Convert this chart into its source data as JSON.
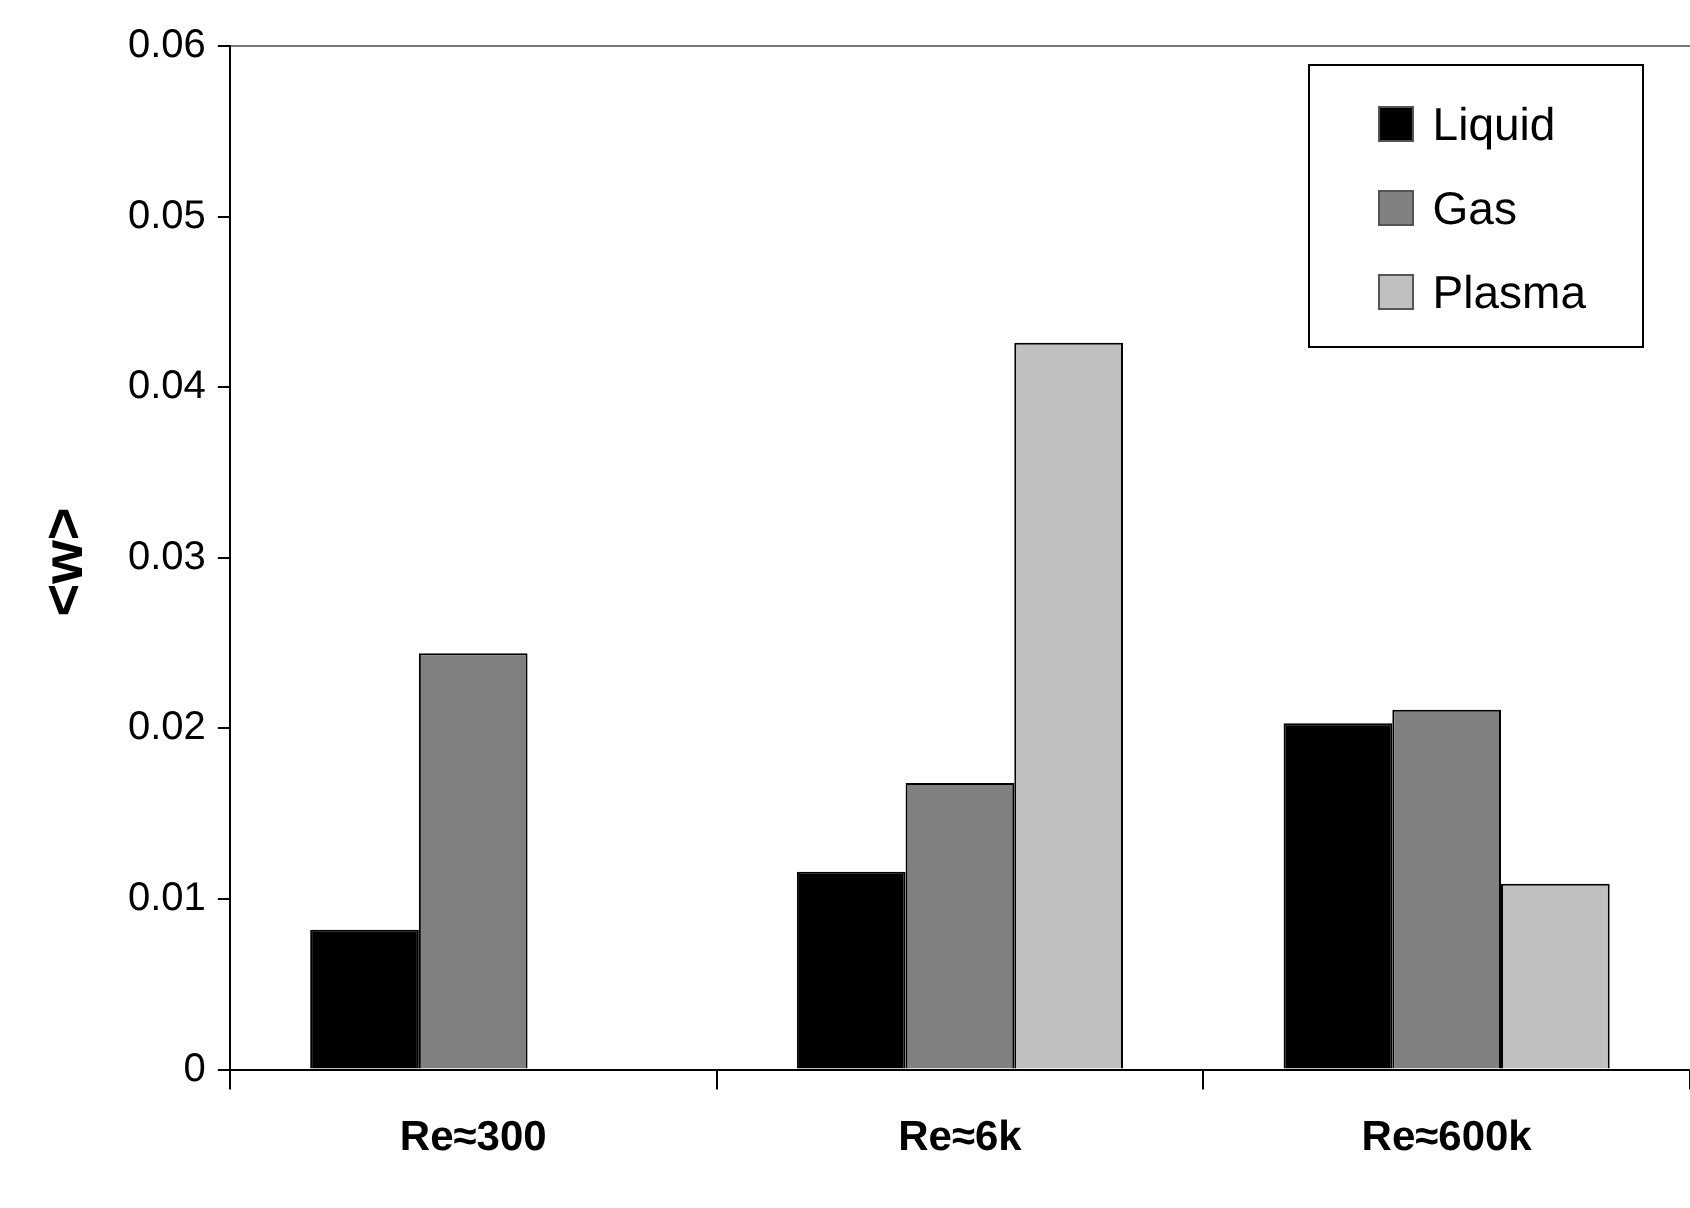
{
  "chart_data": {
    "type": "bar",
    "ylabel": "<w>",
    "categories": [
      "Re≈300",
      "Re≈6k",
      "Re≈600k"
    ],
    "series": [
      {
        "name": "Liquid",
        "color": "#000000",
        "values": [
          0.0082,
          0.0116,
          0.0203
        ]
      },
      {
        "name": "Gas",
        "color": "#808080",
        "values": [
          0.0244,
          0.0168,
          0.0211
        ]
      },
      {
        "name": "Plasma",
        "color": "#c0c0c0",
        "values": [
          null,
          0.0426,
          0.0109
        ]
      }
    ],
    "ylim": [
      0,
      0.06
    ],
    "yticks": [
      0,
      0.01,
      0.02,
      0.03,
      0.04,
      0.05,
      0.06
    ],
    "grid": false,
    "legend": "top right"
  }
}
